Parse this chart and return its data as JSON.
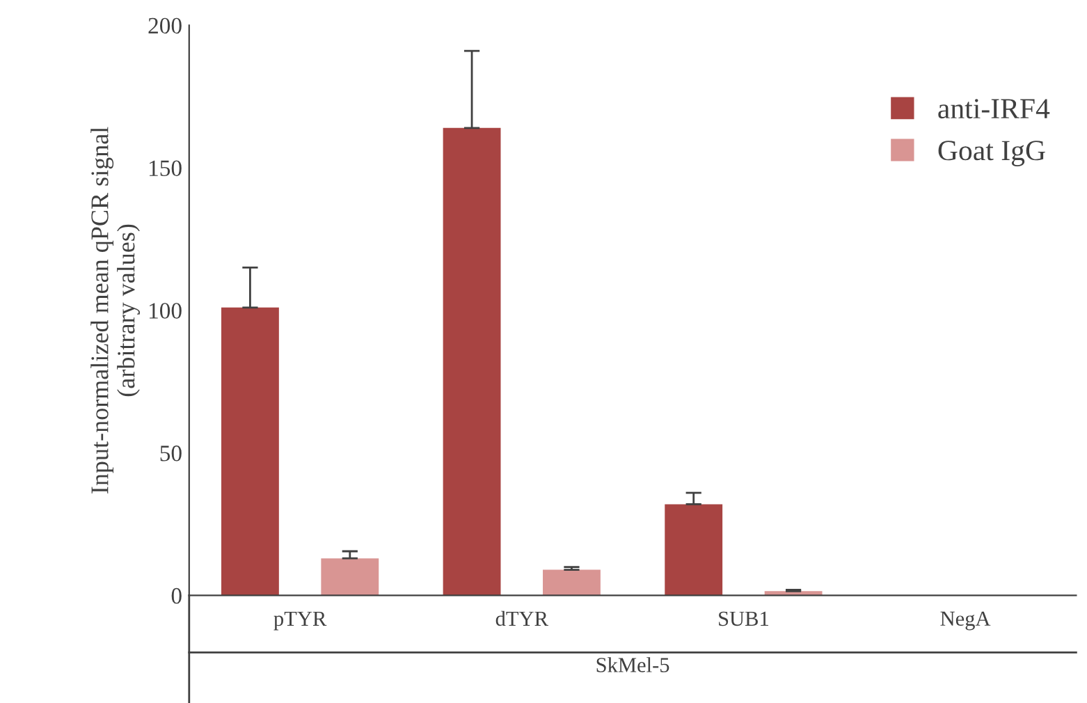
{
  "chart_data": {
    "type": "bar",
    "ylabel": "Input-normalized mean qPCR signal\n(arbitrary values)",
    "xlabel": "SkMel-5",
    "categories": [
      "pTYR",
      "dTYR",
      "SUB1",
      "NegA"
    ],
    "series": [
      {
        "name": "anti-IRF4",
        "color": "#a84442",
        "values": [
          101,
          164,
          32,
          0
        ],
        "errors": [
          [
            101,
            115
          ],
          [
            164,
            191
          ],
          [
            32,
            36
          ],
          null
        ]
      },
      {
        "name": "Goat IgG",
        "color": "#d99593",
        "values": [
          13,
          9,
          1.5,
          0
        ],
        "errors": [
          [
            13,
            15.5
          ],
          [
            9,
            10
          ],
          [
            1.5,
            2
          ],
          null
        ]
      }
    ],
    "ylim": [
      0,
      200
    ],
    "yticks": [
      0,
      50,
      100,
      150,
      200
    ],
    "grid": false,
    "legend": "top right"
  }
}
